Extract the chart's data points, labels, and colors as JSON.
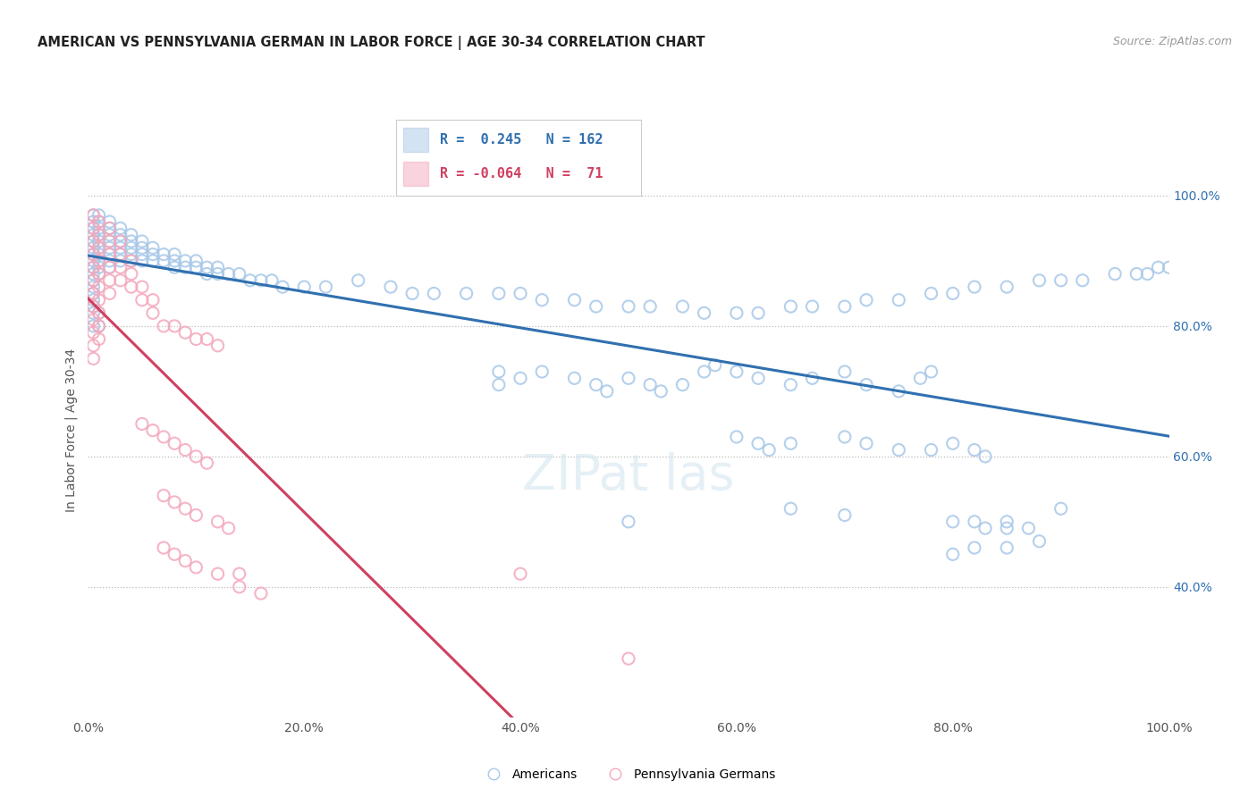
{
  "title": "AMERICAN VS PENNSYLVANIA GERMAN IN LABOR FORCE | AGE 30-34 CORRELATION CHART",
  "source": "Source: ZipAtlas.com",
  "ylabel": "In Labor Force | Age 30-34",
  "xlim": [
    0.0,
    1.0
  ],
  "ylim": [
    0.2,
    1.08
  ],
  "right_yticks": [
    0.4,
    0.6,
    0.8,
    1.0
  ],
  "right_yticklabels": [
    "40.0%",
    "60.0%",
    "80.0%",
    "100.0%"
  ],
  "xtick_labels": [
    "0.0%",
    "20.0%",
    "40.0%",
    "60.0%",
    "80.0%",
    "100.0%"
  ],
  "xtick_positions": [
    0.0,
    0.2,
    0.4,
    0.6,
    0.8,
    1.0
  ],
  "blue_color": "#a8c8e8",
  "pink_color": "#f4a8bc",
  "blue_line_color": "#3070b0",
  "pink_line_color": "#d04060",
  "legend_r_blue": "0.245",
  "legend_n_blue": "162",
  "legend_r_pink": "-0.064",
  "legend_n_pink": "71",
  "blue_scatter": [
    [
      0.005,
      0.97
    ],
    [
      0.005,
      0.96
    ],
    [
      0.005,
      0.95
    ],
    [
      0.005,
      0.94
    ],
    [
      0.005,
      0.93
    ],
    [
      0.005,
      0.92
    ],
    [
      0.005,
      0.91
    ],
    [
      0.005,
      0.9
    ],
    [
      0.005,
      0.89
    ],
    [
      0.005,
      0.88
    ],
    [
      0.005,
      0.87
    ],
    [
      0.005,
      0.86
    ],
    [
      0.005,
      0.85
    ],
    [
      0.005,
      0.84
    ],
    [
      0.005,
      0.83
    ],
    [
      0.01,
      0.97
    ],
    [
      0.01,
      0.96
    ],
    [
      0.01,
      0.95
    ],
    [
      0.01,
      0.94
    ],
    [
      0.01,
      0.93
    ],
    [
      0.01,
      0.92
    ],
    [
      0.01,
      0.91
    ],
    [
      0.01,
      0.9
    ],
    [
      0.01,
      0.89
    ],
    [
      0.01,
      0.88
    ],
    [
      0.02,
      0.96
    ],
    [
      0.02,
      0.95
    ],
    [
      0.02,
      0.94
    ],
    [
      0.02,
      0.93
    ],
    [
      0.02,
      0.92
    ],
    [
      0.02,
      0.91
    ],
    [
      0.02,
      0.9
    ],
    [
      0.02,
      0.89
    ],
    [
      0.03,
      0.95
    ],
    [
      0.03,
      0.94
    ],
    [
      0.03,
      0.93
    ],
    [
      0.03,
      0.92
    ],
    [
      0.03,
      0.91
    ],
    [
      0.03,
      0.9
    ],
    [
      0.04,
      0.94
    ],
    [
      0.04,
      0.93
    ],
    [
      0.04,
      0.92
    ],
    [
      0.04,
      0.91
    ],
    [
      0.04,
      0.9
    ],
    [
      0.05,
      0.93
    ],
    [
      0.05,
      0.92
    ],
    [
      0.05,
      0.91
    ],
    [
      0.05,
      0.9
    ],
    [
      0.06,
      0.92
    ],
    [
      0.06,
      0.91
    ],
    [
      0.06,
      0.9
    ],
    [
      0.07,
      0.91
    ],
    [
      0.07,
      0.9
    ],
    [
      0.08,
      0.91
    ],
    [
      0.08,
      0.9
    ],
    [
      0.08,
      0.89
    ],
    [
      0.09,
      0.9
    ],
    [
      0.09,
      0.89
    ],
    [
      0.1,
      0.9
    ],
    [
      0.1,
      0.89
    ],
    [
      0.11,
      0.89
    ],
    [
      0.11,
      0.88
    ],
    [
      0.12,
      0.89
    ],
    [
      0.12,
      0.88
    ],
    [
      0.13,
      0.88
    ],
    [
      0.14,
      0.88
    ],
    [
      0.15,
      0.87
    ],
    [
      0.16,
      0.87
    ],
    [
      0.17,
      0.87
    ],
    [
      0.18,
      0.86
    ],
    [
      0.2,
      0.86
    ],
    [
      0.22,
      0.86
    ],
    [
      0.25,
      0.87
    ],
    [
      0.28,
      0.86
    ],
    [
      0.3,
      0.85
    ],
    [
      0.32,
      0.85
    ],
    [
      0.35,
      0.85
    ],
    [
      0.38,
      0.85
    ],
    [
      0.4,
      0.85
    ],
    [
      0.42,
      0.84
    ],
    [
      0.45,
      0.84
    ],
    [
      0.47,
      0.83
    ],
    [
      0.5,
      0.83
    ],
    [
      0.52,
      0.83
    ],
    [
      0.55,
      0.83
    ],
    [
      0.57,
      0.82
    ],
    [
      0.6,
      0.82
    ],
    [
      0.62,
      0.82
    ],
    [
      0.65,
      0.83
    ],
    [
      0.67,
      0.83
    ],
    [
      0.7,
      0.83
    ],
    [
      0.72,
      0.84
    ],
    [
      0.75,
      0.84
    ],
    [
      0.78,
      0.85
    ],
    [
      0.8,
      0.85
    ],
    [
      0.82,
      0.86
    ],
    [
      0.85,
      0.86
    ],
    [
      0.88,
      0.87
    ],
    [
      0.9,
      0.87
    ],
    [
      0.92,
      0.87
    ],
    [
      0.95,
      0.88
    ],
    [
      0.97,
      0.88
    ],
    [
      0.98,
      0.88
    ],
    [
      0.99,
      0.89
    ],
    [
      1.0,
      0.89
    ],
    [
      0.005,
      0.82
    ],
    [
      0.005,
      0.8
    ],
    [
      0.01,
      0.82
    ],
    [
      0.01,
      0.8
    ],
    [
      0.38,
      0.73
    ],
    [
      0.38,
      0.71
    ],
    [
      0.4,
      0.72
    ],
    [
      0.42,
      0.73
    ],
    [
      0.45,
      0.72
    ],
    [
      0.47,
      0.71
    ],
    [
      0.48,
      0.7
    ],
    [
      0.5,
      0.72
    ],
    [
      0.52,
      0.71
    ],
    [
      0.53,
      0.7
    ],
    [
      0.55,
      0.71
    ],
    [
      0.57,
      0.73
    ],
    [
      0.58,
      0.74
    ],
    [
      0.6,
      0.73
    ],
    [
      0.62,
      0.72
    ],
    [
      0.65,
      0.71
    ],
    [
      0.67,
      0.72
    ],
    [
      0.7,
      0.73
    ],
    [
      0.72,
      0.71
    ],
    [
      0.75,
      0.7
    ],
    [
      0.77,
      0.72
    ],
    [
      0.78,
      0.73
    ],
    [
      0.6,
      0.63
    ],
    [
      0.62,
      0.62
    ],
    [
      0.63,
      0.61
    ],
    [
      0.65,
      0.62
    ],
    [
      0.7,
      0.63
    ],
    [
      0.72,
      0.62
    ],
    [
      0.75,
      0.61
    ],
    [
      0.78,
      0.61
    ],
    [
      0.8,
      0.62
    ],
    [
      0.82,
      0.61
    ],
    [
      0.83,
      0.6
    ],
    [
      0.5,
      0.5
    ],
    [
      0.65,
      0.52
    ],
    [
      0.7,
      0.51
    ],
    [
      0.8,
      0.5
    ],
    [
      0.82,
      0.5
    ],
    [
      0.83,
      0.49
    ],
    [
      0.85,
      0.5
    ],
    [
      0.85,
      0.49
    ],
    [
      0.87,
      0.49
    ],
    [
      0.9,
      0.52
    ],
    [
      0.8,
      0.45
    ],
    [
      0.82,
      0.46
    ],
    [
      0.85,
      0.46
    ],
    [
      0.88,
      0.47
    ]
  ],
  "pink_scatter": [
    [
      0.005,
      0.97
    ],
    [
      0.005,
      0.95
    ],
    [
      0.005,
      0.93
    ],
    [
      0.005,
      0.91
    ],
    [
      0.005,
      0.89
    ],
    [
      0.005,
      0.87
    ],
    [
      0.005,
      0.85
    ],
    [
      0.005,
      0.83
    ],
    [
      0.005,
      0.81
    ],
    [
      0.005,
      0.79
    ],
    [
      0.005,
      0.77
    ],
    [
      0.005,
      0.75
    ],
    [
      0.01,
      0.96
    ],
    [
      0.01,
      0.94
    ],
    [
      0.01,
      0.92
    ],
    [
      0.01,
      0.9
    ],
    [
      0.01,
      0.88
    ],
    [
      0.01,
      0.86
    ],
    [
      0.01,
      0.84
    ],
    [
      0.01,
      0.82
    ],
    [
      0.01,
      0.8
    ],
    [
      0.01,
      0.78
    ],
    [
      0.02,
      0.95
    ],
    [
      0.02,
      0.93
    ],
    [
      0.02,
      0.91
    ],
    [
      0.02,
      0.89
    ],
    [
      0.02,
      0.87
    ],
    [
      0.02,
      0.85
    ],
    [
      0.03,
      0.93
    ],
    [
      0.03,
      0.91
    ],
    [
      0.03,
      0.89
    ],
    [
      0.03,
      0.87
    ],
    [
      0.04,
      0.9
    ],
    [
      0.04,
      0.88
    ],
    [
      0.04,
      0.86
    ],
    [
      0.05,
      0.86
    ],
    [
      0.05,
      0.84
    ],
    [
      0.06,
      0.84
    ],
    [
      0.06,
      0.82
    ],
    [
      0.07,
      0.8
    ],
    [
      0.08,
      0.8
    ],
    [
      0.09,
      0.79
    ],
    [
      0.1,
      0.78
    ],
    [
      0.11,
      0.78
    ],
    [
      0.12,
      0.77
    ],
    [
      0.05,
      0.65
    ],
    [
      0.06,
      0.64
    ],
    [
      0.07,
      0.63
    ],
    [
      0.08,
      0.62
    ],
    [
      0.09,
      0.61
    ],
    [
      0.1,
      0.6
    ],
    [
      0.11,
      0.59
    ],
    [
      0.07,
      0.54
    ],
    [
      0.08,
      0.53
    ],
    [
      0.09,
      0.52
    ],
    [
      0.1,
      0.51
    ],
    [
      0.12,
      0.5
    ],
    [
      0.13,
      0.49
    ],
    [
      0.07,
      0.46
    ],
    [
      0.08,
      0.45
    ],
    [
      0.09,
      0.44
    ],
    [
      0.1,
      0.43
    ],
    [
      0.12,
      0.42
    ],
    [
      0.14,
      0.42
    ],
    [
      0.14,
      0.4
    ],
    [
      0.16,
      0.39
    ],
    [
      0.4,
      0.42
    ],
    [
      0.5,
      0.29
    ]
  ]
}
